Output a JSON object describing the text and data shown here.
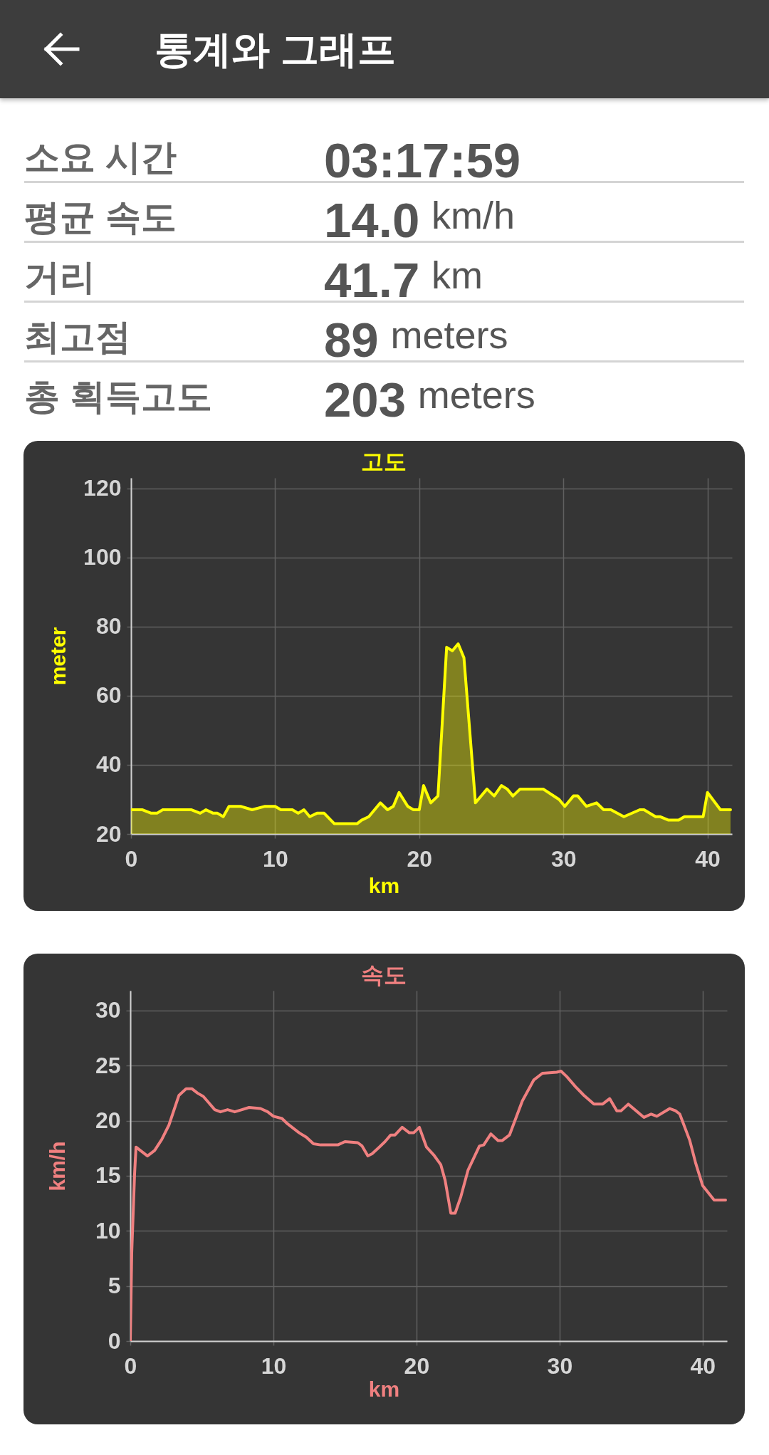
{
  "chart_data": [
    {
      "type": "other",
      "title": "통계와 그래프",
      "annotations": [
        "소요 시간",
        "03:17:59",
        "평균 속도",
        "14.0 km/h",
        "거리",
        "41.7 km",
        "최고점",
        "89 meters",
        "총 획득고도",
        "203 meters"
      ]
    },
    {
      "type": "area",
      "title": "고도",
      "xlabel": "km",
      "ylabel": "meter",
      "x": [
        0,
        0.4,
        0.8,
        1.4,
        1.8,
        2.2,
        4.2,
        4.8,
        5.2,
        5.7,
        6.0,
        6.4,
        6.8,
        7.6,
        8.4,
        9.3,
        9.7,
        10.0,
        10.4,
        10.9,
        11.2,
        11.6,
        12.0,
        12.4,
        12.9,
        13.4,
        14.1,
        15.7,
        16.0,
        16.5,
        17.3,
        17.8,
        18.2,
        18.6,
        19.2,
        19.6,
        20.0,
        20.3,
        20.8,
        21.3,
        21.9,
        22.3,
        22.7,
        23.1,
        23.9,
        24.7,
        25.2,
        25.7,
        26.1,
        26.5,
        27.0,
        28.6,
        29.7,
        30.1,
        30.7,
        31.0,
        31.6,
        32.3,
        32.8,
        33.3,
        34.2,
        35.3,
        35.6,
        36.4,
        36.7,
        37.3,
        38.0,
        38.4,
        39.7,
        40.0,
        40.9,
        41.6
      ],
      "series": [
        {
          "color": "#ffff00",
          "values": [
            27,
            27,
            27,
            26,
            26,
            27,
            27,
            26,
            27,
            26,
            26,
            25,
            28,
            28,
            27,
            28,
            28,
            28,
            27,
            27,
            27,
            26,
            27,
            25,
            26,
            26,
            23,
            23,
            24,
            25,
            29,
            27,
            28,
            32,
            28,
            27,
            27,
            34,
            29,
            31,
            74,
            73,
            75,
            71,
            29,
            33,
            31,
            34,
            33,
            31,
            33,
            33,
            30,
            28,
            31,
            31,
            28,
            29,
            27,
            27,
            25,
            27,
            27,
            25,
            25,
            24,
            24,
            25,
            25,
            32,
            27,
            27
          ]
        }
      ],
      "xlim": [
        0,
        41.7
      ],
      "ylim": [
        20,
        123
      ],
      "xticks": [
        0,
        10,
        20,
        30,
        40
      ],
      "yticks": [
        20,
        40,
        60,
        80,
        100,
        120
      ],
      "grid": true
    },
    {
      "type": "line",
      "title": "속도",
      "xlabel": "km",
      "ylabel": "km/h",
      "x": [
        0,
        0.1,
        0.3,
        0.4,
        0.7,
        1.2,
        1.7,
        2.2,
        2.7,
        3.4,
        3.9,
        4.3,
        4.7,
        5.1,
        5.5,
        5.9,
        6.3,
        6.8,
        7.3,
        7.8,
        8.3,
        9.1,
        9.6,
        10.0,
        10.6,
        11.0,
        11.8,
        12.3,
        12.8,
        13.3,
        14.5,
        15.0,
        15.9,
        16.2,
        16.6,
        16.9,
        17.4,
        17.8,
        18.2,
        18.5,
        19.0,
        19.5,
        19.8,
        20.2,
        20.7,
        21.2,
        21.7,
        22.0,
        22.4,
        22.7,
        23.1,
        23.6,
        24.4,
        24.7,
        25.2,
        25.7,
        26.0,
        26.5,
        27.4,
        28.2,
        28.8,
        29.8,
        30.1,
        30.5,
        31.1,
        31.7,
        32.4,
        33.0,
        33.5,
        34.0,
        34.3,
        34.8,
        35.9,
        36.4,
        36.8,
        37.7,
        38.1,
        38.4,
        39.1,
        39.5,
        40.0,
        40.8,
        41.6
      ],
      "series": [
        {
          "color": "#f08080",
          "values": [
            0,
            8.0,
            15.2,
            17.6,
            17.3,
            16.8,
            17.3,
            18.3,
            19.6,
            22.3,
            22.9,
            22.9,
            22.5,
            22.2,
            21.6,
            21.0,
            20.8,
            21.0,
            20.8,
            21.0,
            21.2,
            21.1,
            20.8,
            20.4,
            20.2,
            19.7,
            18.9,
            18.5,
            17.9,
            17.8,
            17.8,
            18.1,
            18.0,
            17.7,
            16.8,
            17.0,
            17.6,
            18.1,
            18.7,
            18.7,
            19.4,
            18.9,
            18.9,
            19.4,
            17.6,
            16.9,
            16.0,
            14.6,
            11.6,
            11.6,
            13.1,
            15.5,
            17.7,
            17.8,
            18.8,
            18.2,
            18.2,
            18.7,
            21.8,
            23.7,
            24.3,
            24.4,
            24.5,
            24.0,
            23.1,
            22.3,
            21.5,
            21.5,
            22.0,
            20.9,
            20.9,
            21.5,
            20.3,
            20.6,
            20.4,
            21.1,
            20.9,
            20.6,
            18.2,
            16.2,
            14.1,
            12.8,
            12.8
          ]
        }
      ],
      "xlim": [
        0,
        41.7
      ],
      "ylim": [
        0,
        31.8
      ],
      "xticks": [
        0,
        10,
        20,
        30,
        40
      ],
      "yticks": [
        0,
        5,
        10,
        15,
        20,
        25,
        30
      ],
      "grid": true
    }
  ]
}
